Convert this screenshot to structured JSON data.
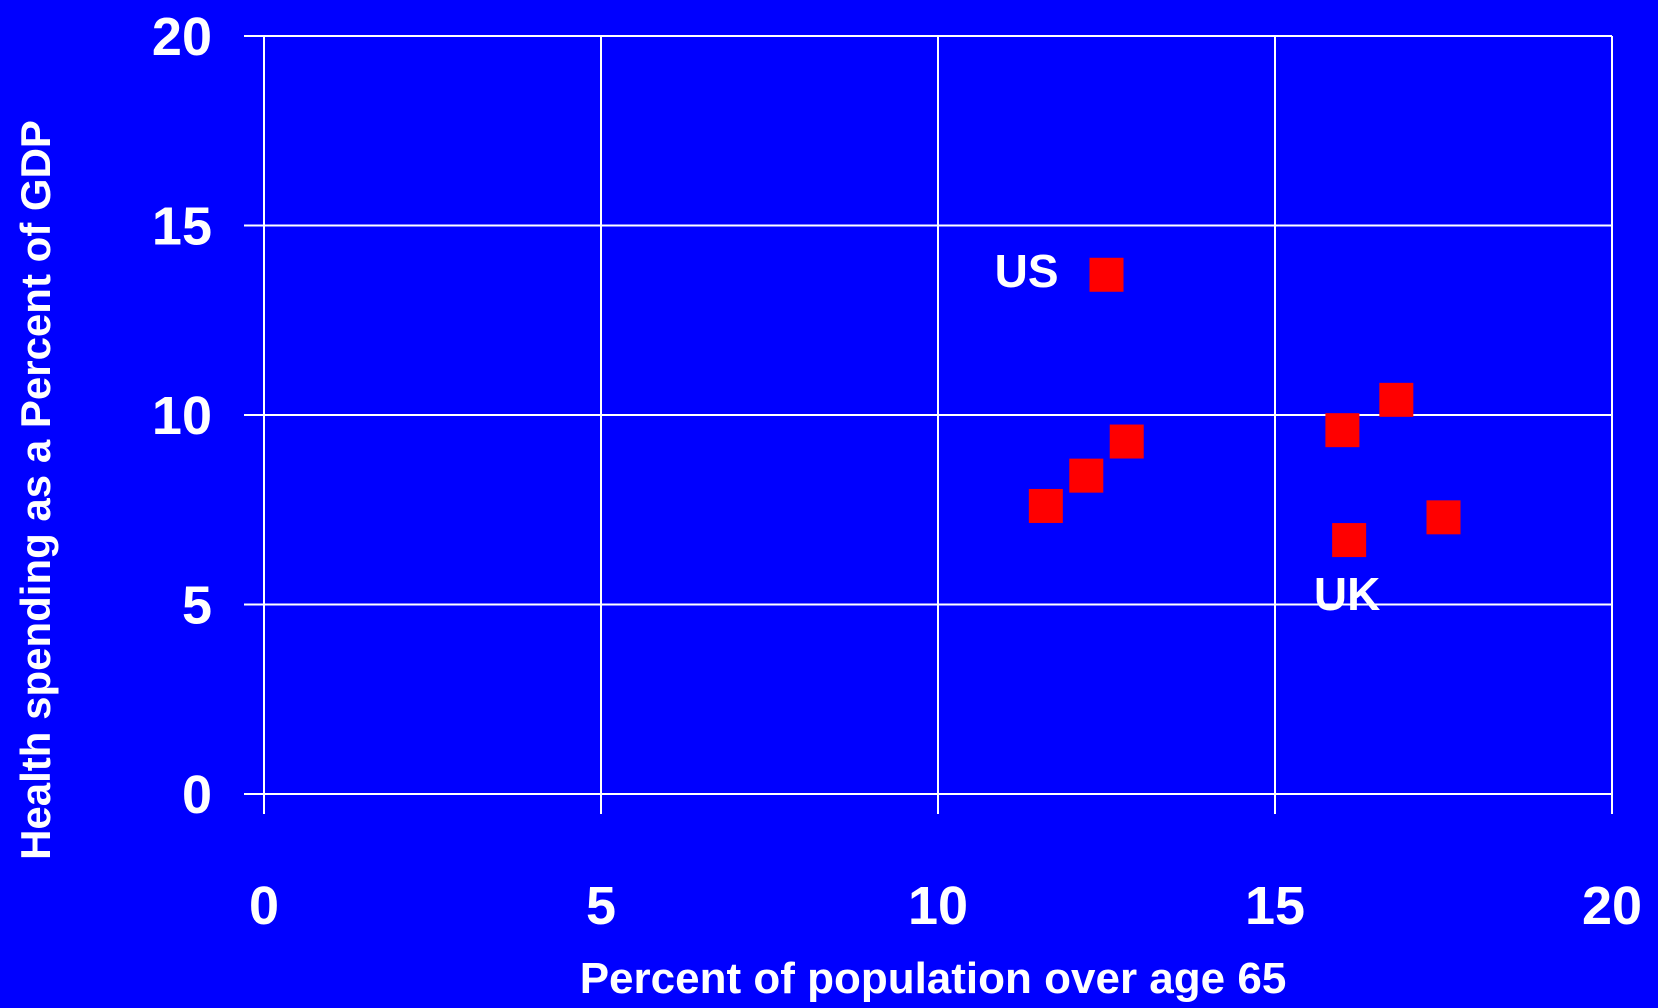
{
  "chart_data": {
    "type": "scatter",
    "title": "",
    "xlabel": "Percent of population over age 65",
    "ylabel": "Health spending as a Percent of GDP",
    "xlim": [
      0,
      20
    ],
    "ylim": [
      0,
      20
    ],
    "x_ticks": [
      0,
      5,
      10,
      15,
      20
    ],
    "y_ticks": [
      0,
      5,
      10,
      15,
      20
    ],
    "grid": true,
    "colors": {
      "background": "#0000ff",
      "marker": "#ff0000",
      "grid": "#ffffff",
      "text": "#ffffff"
    },
    "points": [
      {
        "x": 12.5,
        "y": 13.7,
        "label": "US"
      },
      {
        "x": 11.6,
        "y": 7.6,
        "label": ""
      },
      {
        "x": 12.2,
        "y": 8.4,
        "label": ""
      },
      {
        "x": 12.8,
        "y": 9.3,
        "label": ""
      },
      {
        "x": 16.0,
        "y": 9.6,
        "label": ""
      },
      {
        "x": 16.8,
        "y": 10.4,
        "label": ""
      },
      {
        "x": 16.1,
        "y": 6.7,
        "label": "UK"
      },
      {
        "x": 17.5,
        "y": 7.3,
        "label": ""
      }
    ]
  }
}
